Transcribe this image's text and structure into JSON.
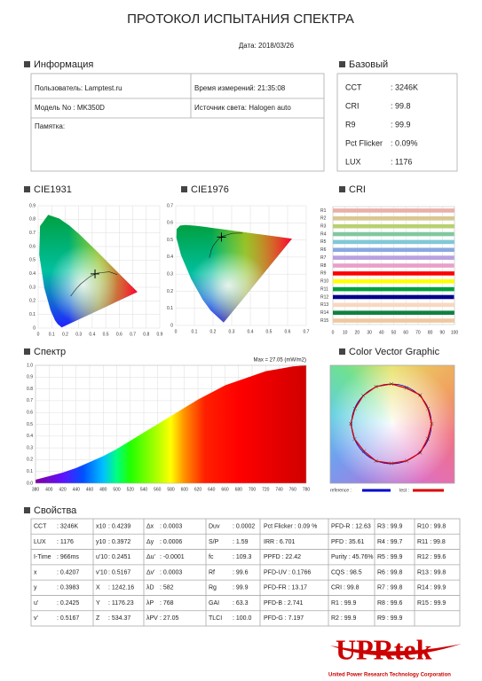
{
  "header": {
    "title": "ПРОТОКОЛ ИСПЫТАНИЯ СПЕКТРА",
    "date": "Дата: 2018/03/26"
  },
  "info": {
    "title": "Информация",
    "user": "Пользователь: Lamptest.ru",
    "time": "Время измерений: 21:35:08",
    "model": "Модель No : MK350D",
    "source": "Источник света: Halogen auto",
    "memo": "Памятка:"
  },
  "basic": {
    "title": "Базовый",
    "rows": [
      [
        "CCT",
        ": 3246K"
      ],
      [
        "CRI",
        ": 99.8"
      ],
      [
        "R9",
        ": 99.9"
      ],
      [
        "Pct Flicker",
        ": 0.09%"
      ],
      [
        "LUX",
        ": 1176"
      ]
    ]
  },
  "cie1931": {
    "title": "CIE1931",
    "xlim": [
      0,
      0.9
    ],
    "ylim": [
      0,
      0.9
    ],
    "xticks": [
      0,
      0.1,
      0.2,
      0.3,
      0.4,
      0.5,
      0.6,
      0.7,
      0.8,
      0.9
    ],
    "yticks": [
      0,
      0.1,
      0.2,
      0.3,
      0.4,
      0.5,
      0.6,
      0.7,
      0.8,
      0.9
    ],
    "point": [
      0.4207,
      0.3983
    ]
  },
  "cie1976": {
    "title": "CIE1976",
    "xlim": [
      0,
      0.7
    ],
    "ylim": [
      0,
      0.7
    ],
    "xticks": [
      0,
      0.1,
      0.2,
      0.3,
      0.4,
      0.5,
      0.6,
      0.7
    ],
    "yticks": [
      0,
      0.1,
      0.2,
      0.3,
      0.4,
      0.5,
      0.6,
      0.7
    ],
    "point": [
      0.2451,
      0.5167
    ]
  },
  "cri": {
    "title": "CRI",
    "type": "bar",
    "categories": [
      "R1",
      "R2",
      "R3",
      "R4",
      "R5",
      "R6",
      "R7",
      "R8",
      "R9",
      "R10",
      "R11",
      "R12",
      "R13",
      "R14",
      "R15"
    ],
    "values": [
      99.9,
      99.9,
      99.9,
      99.7,
      99.9,
      99.8,
      99.8,
      99.6,
      99.9,
      99.8,
      99.8,
      99.6,
      99.8,
      99.9,
      99.9
    ],
    "colors": [
      "#e8b0a8",
      "#d8c890",
      "#b8d070",
      "#80c8a0",
      "#80c8d8",
      "#88a8e0",
      "#b8a0e0",
      "#e8a0c8",
      "#ff0000",
      "#ffff00",
      "#00a040",
      "#000090",
      "#f8d8c0",
      "#108040",
      "#f0c8a0"
    ],
    "xlim": [
      0,
      100
    ],
    "xticks": [
      0,
      10,
      20,
      30,
      40,
      50,
      60,
      70,
      80,
      90,
      100
    ],
    "grid": true
  },
  "spectrum": {
    "title": "Спектр",
    "type": "area",
    "annotation": "Max = 27.05 (mW/m2)",
    "x": [
      380,
      400,
      420,
      440,
      460,
      480,
      500,
      520,
      540,
      560,
      580,
      600,
      620,
      640,
      660,
      680,
      700,
      720,
      740,
      760,
      780
    ],
    "values": [
      0.03,
      0.06,
      0.09,
      0.13,
      0.18,
      0.23,
      0.29,
      0.36,
      0.43,
      0.5,
      0.57,
      0.64,
      0.71,
      0.77,
      0.83,
      0.87,
      0.91,
      0.95,
      0.97,
      0.99,
      1.0
    ],
    "xlim": [
      380,
      780
    ],
    "ylim": [
      0,
      1
    ],
    "xticks": [
      380,
      400,
      420,
      440,
      460,
      480,
      500,
      520,
      540,
      560,
      580,
      600,
      620,
      640,
      660,
      680,
      700,
      720,
      740,
      760,
      780
    ],
    "yticks": [
      {
        "value": 0,
        "label": "0.0"
      },
      0.1,
      0.2,
      0.3,
      0.4,
      0.5,
      0.6,
      0.7,
      0.8,
      0.9,
      {
        "value": 1,
        "label": "1.0"
      }
    ],
    "grid": true
  },
  "color_vector": {
    "title": "Color Vector Graphic",
    "legend": [
      {
        "name": "reference :",
        "color": "#0000cc"
      },
      {
        "name": "test :",
        "color": "#dd0000"
      }
    ]
  },
  "properties": {
    "title": "Свойства",
    "rows": [
      [
        "CCT",
        ": 3246K",
        "x10",
        ": 0.4239",
        "Δx",
        ": 0.0003",
        "Duv",
        ": 0.0002",
        "Pct Flicker : 0.09 %",
        "PFD-R : 12.63",
        "R3 : 99.9",
        "R10 : 99.8"
      ],
      [
        "LUX",
        ": 1176",
        "y10",
        ": 0.3972",
        "Δy",
        ": 0.0006",
        "S/P",
        ": 1.59",
        "IRR : 6.701",
        "PFD : 35.61",
        "R4 : 99.7",
        "R11 : 99.8"
      ],
      [
        "I-Time",
        ": 966ms",
        "u'10",
        ": 0.2451",
        "Δu'",
        ": -0.0001",
        "fc",
        ": 109.3",
        "PPFD : 22.42",
        "Purity : 45.76%",
        "R5 : 99.9",
        "R12 : 99.6"
      ],
      [
        "x",
        ": 0.4207",
        "v'10",
        ": 0.5167",
        "Δv'",
        ": 0.0003",
        "Rf",
        ": 99.6",
        "PFD-UV : 0.1766",
        "CQS : 98.5",
        "R6 : 99.8",
        "R13 : 99.8"
      ],
      [
        "y",
        ": 0.3983",
        "X",
        ": 1242.16",
        "λD",
        ": 582",
        "Rg",
        ": 99.9",
        "PFD-FR : 13.17",
        "CRI : 99.8",
        "R7 : 99.8",
        "R14 : 99.9"
      ],
      [
        "u'",
        ": 0.2425",
        "Y",
        ": 1176.23",
        "λP",
        ": 768",
        "GAI",
        ": 63.3",
        "PFD-B : 2.741",
        "R1 : 99.9",
        "R8 : 99.6",
        "R15 : 99.9"
      ],
      [
        "v'",
        ": 0.5167",
        "Z",
        ": 534.37",
        "λPV",
        ": 27.05",
        "TLCI",
        ": 100.0",
        "PFD-G : 7.197",
        "R2 : 99.9",
        "R9 : 99.9"
      ]
    ]
  },
  "logo": {
    "name": "UPRtek",
    "tagline": "United Power Research Technology Corporation"
  }
}
